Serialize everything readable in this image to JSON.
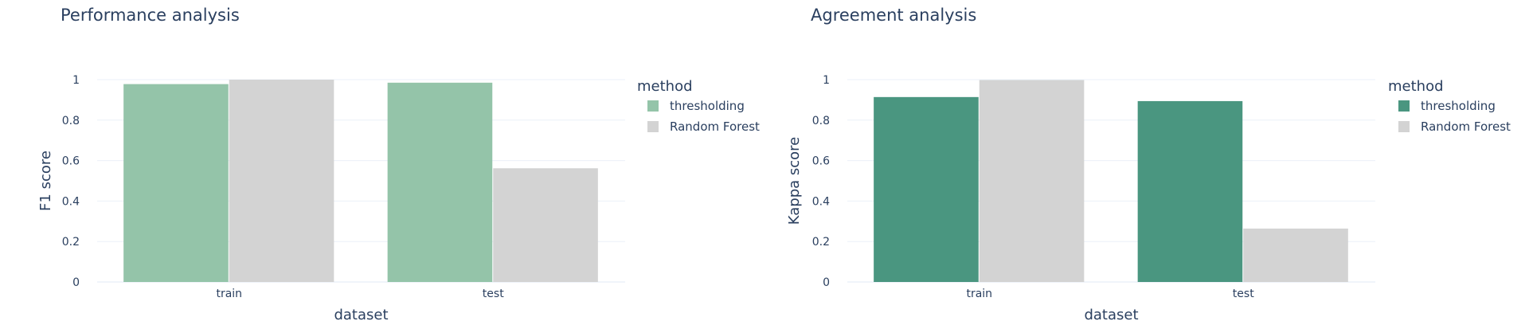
{
  "chart_data": [
    {
      "type": "bar",
      "title": "Performance analysis",
      "xlabel": "dataset",
      "ylabel": "F1 score",
      "categories": [
        "train",
        "test"
      ],
      "ylim": [
        0,
        1
      ],
      "yticks": [
        0,
        0.2,
        0.4,
        0.6,
        0.8,
        1
      ],
      "ytick_labels": [
        "0",
        "0.2",
        "0.4",
        "0.6",
        "0.8",
        "1"
      ],
      "grid": true,
      "legend_title": "method",
      "legend_position": "right",
      "series": [
        {
          "name": "thresholding",
          "color": "#94c4a9",
          "values": [
            0.978,
            0.985
          ]
        },
        {
          "name": "Random Forest",
          "color": "#d3d3d3",
          "values": [
            1.0,
            0.562
          ]
        }
      ]
    },
    {
      "type": "bar",
      "title": "Agreement analysis",
      "xlabel": "dataset",
      "ylabel": "Kappa score",
      "categories": [
        "train",
        "test"
      ],
      "ylim": [
        0,
        1
      ],
      "yticks": [
        0,
        0.2,
        0.4,
        0.6,
        0.8,
        1
      ],
      "ytick_labels": [
        "0",
        "0.2",
        "0.4",
        "0.6",
        "0.8",
        "1"
      ],
      "grid": true,
      "legend_title": "method",
      "legend_position": "right",
      "series": [
        {
          "name": "thresholding",
          "color": "#4a9680",
          "values": [
            0.914,
            0.894
          ]
        },
        {
          "name": "Random Forest",
          "color": "#d3d3d3",
          "values": [
            0.998,
            0.264
          ]
        }
      ]
    }
  ]
}
